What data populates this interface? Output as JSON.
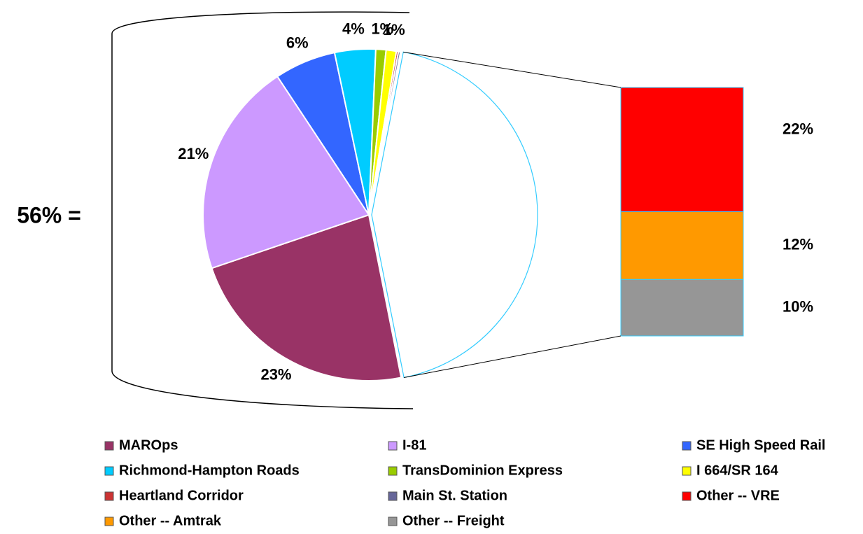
{
  "chart_data": {
    "type": "pie_of_bar",
    "sum_label": "56% =",
    "pie": {
      "categories": [
        "MAROps",
        "I-81",
        "SE High Speed Rail",
        "Richmond-Hampton Roads",
        "TransDominion Express",
        "I 664/SR 164",
        "Heartland Corridor",
        "Main St. Station"
      ],
      "colors": [
        "#993366",
        "#cc99ff",
        "#3366ff",
        "#00ccff",
        "#99cc00",
        "#ffff00",
        "#cc3333",
        "#666699"
      ],
      "values": [
        23,
        21,
        6,
        4,
        1,
        1,
        0.2,
        0.2
      ],
      "value_labels": [
        "23%",
        "21%",
        "6%",
        "4%",
        "1%",
        "1%",
        null,
        null
      ]
    },
    "bar": {
      "categories": [
        "Other -- VRE",
        "Other -- Amtrak",
        "Other -- Freight"
      ],
      "colors": [
        "#ff0000",
        "#ff9900",
        "#969696"
      ],
      "values": [
        22,
        12,
        10
      ],
      "value_labels": [
        "22%",
        "12%",
        "10%"
      ]
    }
  }
}
